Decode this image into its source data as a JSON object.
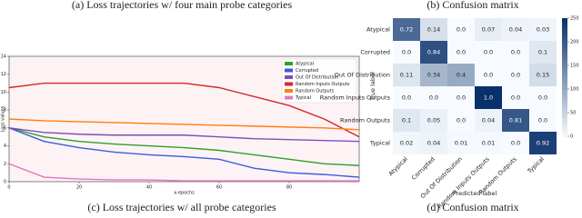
{
  "captions": [
    "(a) Loss trajectories w/ four main probe categories",
    "(b) Confusion matrix",
    "(c) Loss trajectories w/ all probe categories",
    "(d) Confusion matrix"
  ],
  "chart_data": [
    {
      "type": "line",
      "y_label": "Loss values",
      "x_label": "x-epochs",
      "x": [
        0,
        10,
        20,
        30,
        40,
        50,
        60,
        70,
        80,
        90,
        100
      ],
      "xlim": [
        0,
        100
      ],
      "xticks": [
        0,
        20,
        40,
        60,
        80
      ],
      "ylim": [
        0,
        14
      ],
      "yticks": [
        0,
        2,
        4,
        6,
        8,
        10,
        12,
        14
      ],
      "legend": "upper right",
      "series": [
        {
          "name": "Atypical",
          "color": "#2ca02c",
          "values": [
            6,
            5,
            4.5,
            4.2,
            4,
            3.8,
            3.5,
            3,
            2.5,
            2,
            1.8
          ]
        },
        {
          "name": "Corrupted",
          "color": "#3b5bdb",
          "values": [
            6,
            4.5,
            3.8,
            3.3,
            3,
            2.8,
            2.5,
            1.5,
            1,
            0.8,
            0.5
          ]
        },
        {
          "name": "Out Of Distribution",
          "color": "#7b4fb8",
          "values": [
            6,
            5.5,
            5.3,
            5.2,
            5.2,
            5.2,
            5,
            4.8,
            4.7,
            4.6,
            4.5
          ]
        },
        {
          "name": "Random Inputs Outputs",
          "color": "#d62728",
          "values": [
            10.5,
            11,
            11,
            11,
            11,
            11,
            10.5,
            9.5,
            8.5,
            7,
            5
          ]
        },
        {
          "name": "Random Outputs",
          "color": "#ff7f0e",
          "values": [
            7,
            6.8,
            6.7,
            6.6,
            6.5,
            6.4,
            6.3,
            6.2,
            6.1,
            6,
            5.8
          ]
        },
        {
          "name": "Typical",
          "color": "#e377c2",
          "values": [
            2,
            0.5,
            0.3,
            0.2,
            0.2,
            0.1,
            0.1,
            0.1,
            0.1,
            0.1,
            0.1
          ]
        }
      ]
    },
    {
      "type": "heatmap",
      "x_label": "Predicted label",
      "y_label": "True label",
      "categories": [
        "Atypical",
        "Corrupted",
        "Out Of Distribution",
        "Random Inputs Outputs",
        "Random Outputs",
        "Typical"
      ],
      "values": [
        [
          0.72,
          0.14,
          0,
          0.07,
          0.04,
          0.03
        ],
        [
          0,
          0.84,
          0,
          0,
          0,
          0.1
        ],
        [
          0.11,
          0.34,
          0.4,
          0,
          0,
          0.15
        ],
        [
          0,
          0,
          0,
          1,
          0,
          0
        ],
        [
          0.1,
          0.05,
          0,
          0.04,
          0.81,
          0
        ],
        [
          0.02,
          0.04,
          0.01,
          0.01,
          0,
          0.92
        ]
      ],
      "value_labels": [
        [
          "0.72",
          "0.14",
          "0.0",
          "0.07",
          "0.04",
          "0.03"
        ],
        [
          "0.0",
          "0.84",
          "0.0",
          "0.0",
          "0.0",
          "0.1"
        ],
        [
          "0.11",
          "0.34",
          "0.4",
          "0.0",
          "0.0",
          "0.15"
        ],
        [
          "0.0",
          "0.0",
          "0.0",
          "1.0",
          "0.0",
          "0.0"
        ],
        [
          "0.1",
          "0.05",
          "0.0",
          "0.04",
          "0.81",
          "0.0"
        ],
        [
          "0.02",
          "0.04",
          "0.01",
          "0.01",
          "0.0",
          "0.92"
        ]
      ],
      "colormap": "Blues",
      "clim": [
        0,
        250
      ],
      "cticks": [
        0,
        50,
        100,
        150,
        200,
        250
      ]
    }
  ]
}
